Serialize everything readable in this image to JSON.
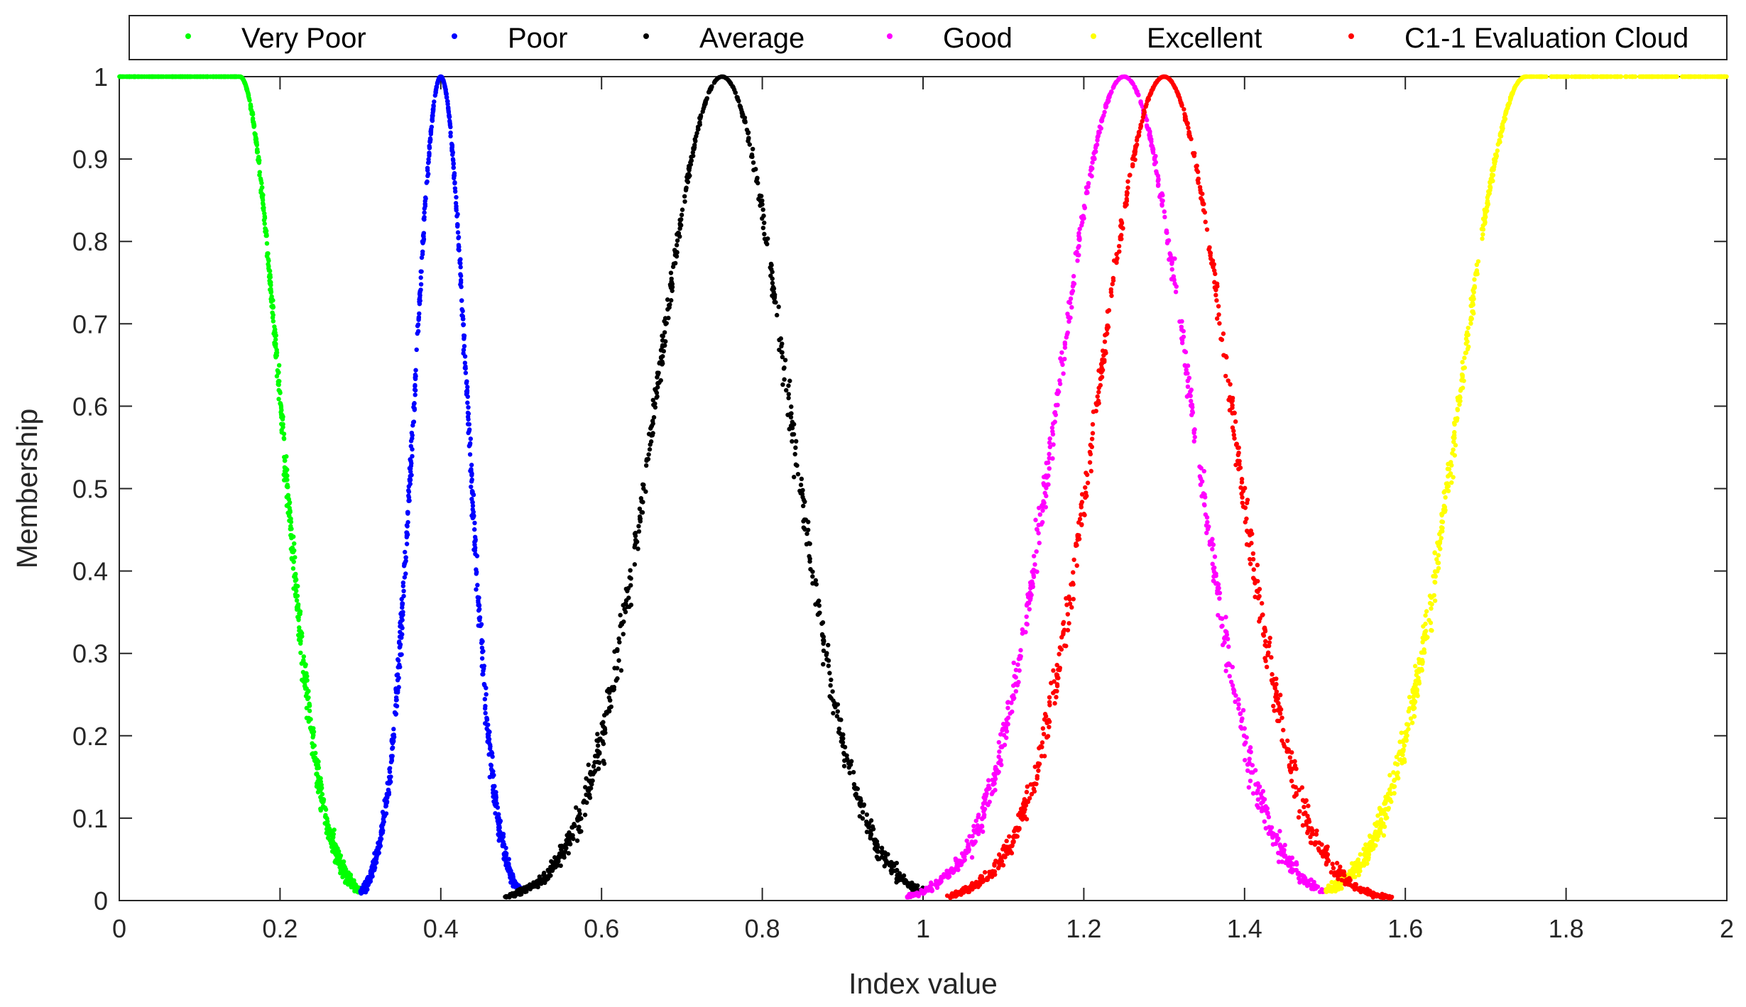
{
  "chart_data": {
    "type": "scatter",
    "title": "",
    "xlabel": "Index value",
    "ylabel": "Membership",
    "xlim": [
      0,
      2
    ],
    "ylim": [
      0,
      1
    ],
    "xticks": [
      0,
      0.2,
      0.4,
      0.6,
      0.8,
      1,
      1.2,
      1.4,
      1.6,
      1.8,
      2
    ],
    "xtick_labels": [
      "0",
      "0.2",
      "0.4",
      "0.6",
      "0.8",
      "1",
      "1.2",
      "1.4",
      "1.6",
      "1.8",
      "2"
    ],
    "yticks": [
      0,
      0.1,
      0.2,
      0.3,
      0.4,
      0.5,
      0.6,
      0.7,
      0.8,
      0.9,
      1
    ],
    "ytick_labels": [
      "0",
      "0.1",
      "0.2",
      "0.3",
      "0.4",
      "0.5",
      "0.6",
      "0.7",
      "0.8",
      "0.9",
      "1"
    ],
    "grid": false,
    "legend_position": "top, horizontal, outside plot",
    "series": [
      {
        "name": "Very Poor",
        "color": "#00ff00",
        "kind": "half-normal-left",
        "Ex": 0.15,
        "En": 0.05,
        "x_range": [
          0,
          0.3
        ]
      },
      {
        "name": "Poor",
        "color": "#0000ff",
        "kind": "normal",
        "Ex": 0.4,
        "En": 0.033,
        "x_range": [
          0.3,
          0.5
        ]
      },
      {
        "name": "Average",
        "color": "#000000",
        "kind": "normal",
        "Ex": 0.75,
        "En": 0.083,
        "x_range": [
          0.48,
          1.0
        ]
      },
      {
        "name": "Good",
        "color": "#ff00ff",
        "kind": "normal",
        "Ex": 1.25,
        "En": 0.083,
        "x_range": [
          0.98,
          1.5
        ]
      },
      {
        "name": "Excellent",
        "color": "#ffff00",
        "kind": "half-normal-right",
        "Ex": 1.75,
        "En": 0.083,
        "x_range": [
          1.5,
          2.0
        ]
      },
      {
        "name": "C1-1 Evaluation Cloud",
        "color": "#ff0000",
        "kind": "normal",
        "Ex": 1.3,
        "En": 0.083,
        "x_range": [
          1.03,
          1.6
        ]
      }
    ]
  }
}
